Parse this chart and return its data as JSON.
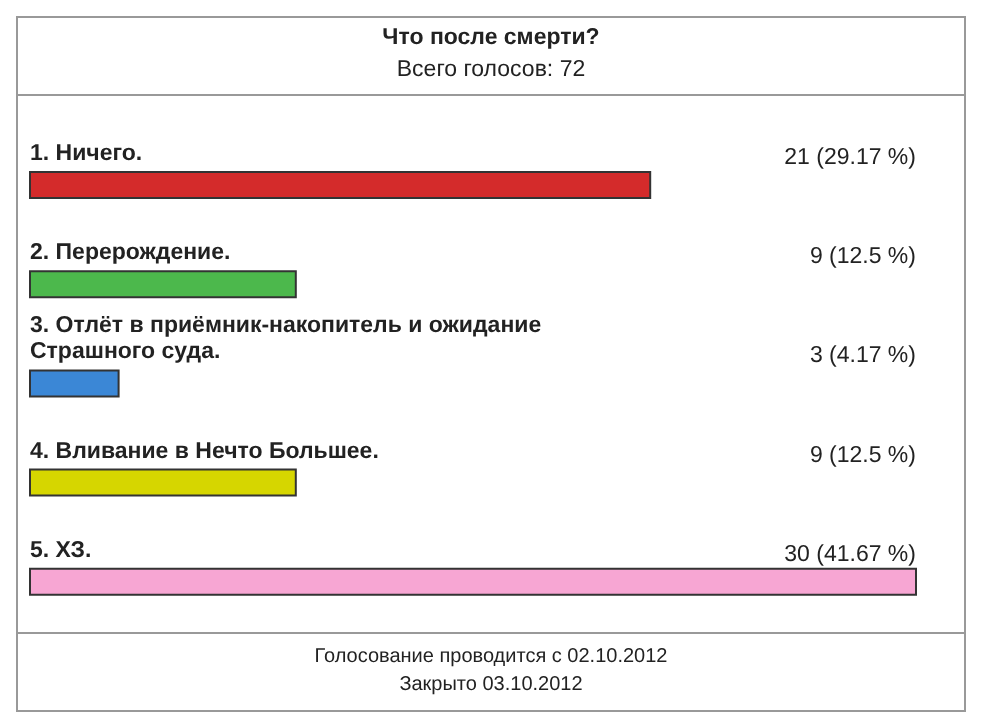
{
  "chart_data": {
    "type": "bar",
    "orientation": "horizontal",
    "title": "Что после смерти?",
    "subtitle": "Всего голосов: 72",
    "categories": [
      "1. Ничего.",
      "2. Перерождение.",
      "3. Отлёт в приёмник-накопитель и ожидание Страшного суда.",
      "4. Вливание в Нечто Большее.",
      "5. ХЗ."
    ],
    "values": [
      21,
      9,
      3,
      9,
      30
    ],
    "colors": [
      "#d42b2b",
      "#4cb84c",
      "#3b87d6",
      "#d6d600",
      "#f7a6d3"
    ],
    "value_labels": [
      "21 (29.17 %)",
      "9 (12.5 %)",
      "3 (4.17 %)",
      "9 (12.5 %)",
      "30 (41.67 %)"
    ],
    "annotations": [
      "Голосование проводится с 02.10.2012",
      "Закрыто 03.10.2012"
    ]
  }
}
